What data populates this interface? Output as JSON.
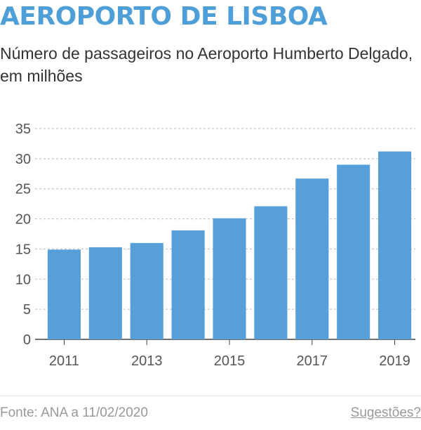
{
  "header": {
    "title": "AEROPORTO DE LISBOA",
    "subtitle": "Número de passageiros no Aeroporto Humberto Delgado, em milhões"
  },
  "footer": {
    "source": "Fonte: ANA a 11/02/2020",
    "suggestions_link": "Sugestões?"
  },
  "colors": {
    "title": "#4e9fd8",
    "bar": "#579fd9",
    "gridline": "#bbbbbb",
    "axis": "#444444"
  },
  "chart_data": {
    "type": "bar",
    "categories": [
      "2011",
      "2012",
      "2013",
      "2014",
      "2015",
      "2016",
      "2017",
      "2018",
      "2019"
    ],
    "values": [
      14.9,
      15.3,
      16.0,
      18.1,
      20.1,
      22.1,
      26.7,
      29.0,
      31.2
    ],
    "x_tick_labels": [
      "2011",
      "2013",
      "2015",
      "2017",
      "2019"
    ],
    "y_ticks": [
      0,
      5,
      10,
      15,
      20,
      25,
      30,
      35
    ],
    "ylim": [
      0,
      35
    ],
    "grid": "horizontal dashed",
    "title": "AEROPORTO DE LISBOA",
    "xlabel": "",
    "ylabel": ""
  }
}
